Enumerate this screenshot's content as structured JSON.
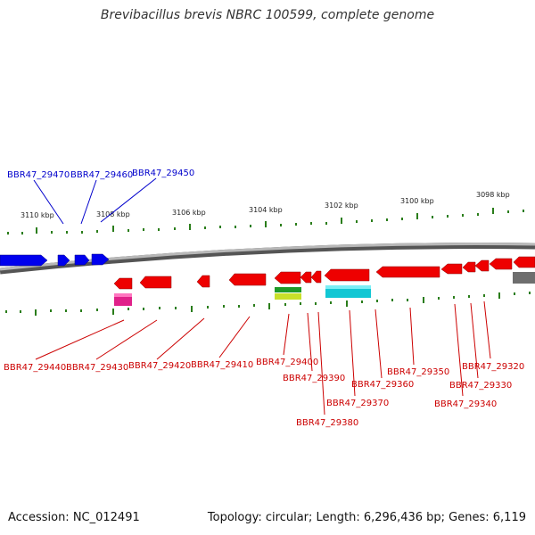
{
  "title": "Brevibacillus brevis NBRC 100599, complete genome",
  "footer": {
    "accession": "Accession: NC_012491",
    "topology": "Topology: circular; Length: 6,296,436 bp; Genes: 6,119"
  },
  "colors": {
    "forward_gene": "#0000ee",
    "reverse_gene": "#ee0000",
    "backbone": "#8a8a8a",
    "tick": "#2a7d1a"
  },
  "scale_labels": [
    "3110 kbp",
    "3108 kbp",
    "3106 kbp",
    "3104 kbp",
    "3102 kbp",
    "3100 kbp",
    "3098 kbp"
  ],
  "forward_genes": [
    "BBR47_29470",
    "BBR47_29460",
    "BBR47_29450"
  ],
  "reverse_genes": [
    "BBR47_29440",
    "BBR47_29430",
    "BBR47_29420",
    "BBR47_29410",
    "BBR47_29400",
    "BBR47_29390",
    "BBR47_29380",
    "BBR47_29370",
    "BBR47_29360",
    "BBR47_29350",
    "BBR47_29340",
    "BBR47_29330",
    "BBR47_29320"
  ]
}
